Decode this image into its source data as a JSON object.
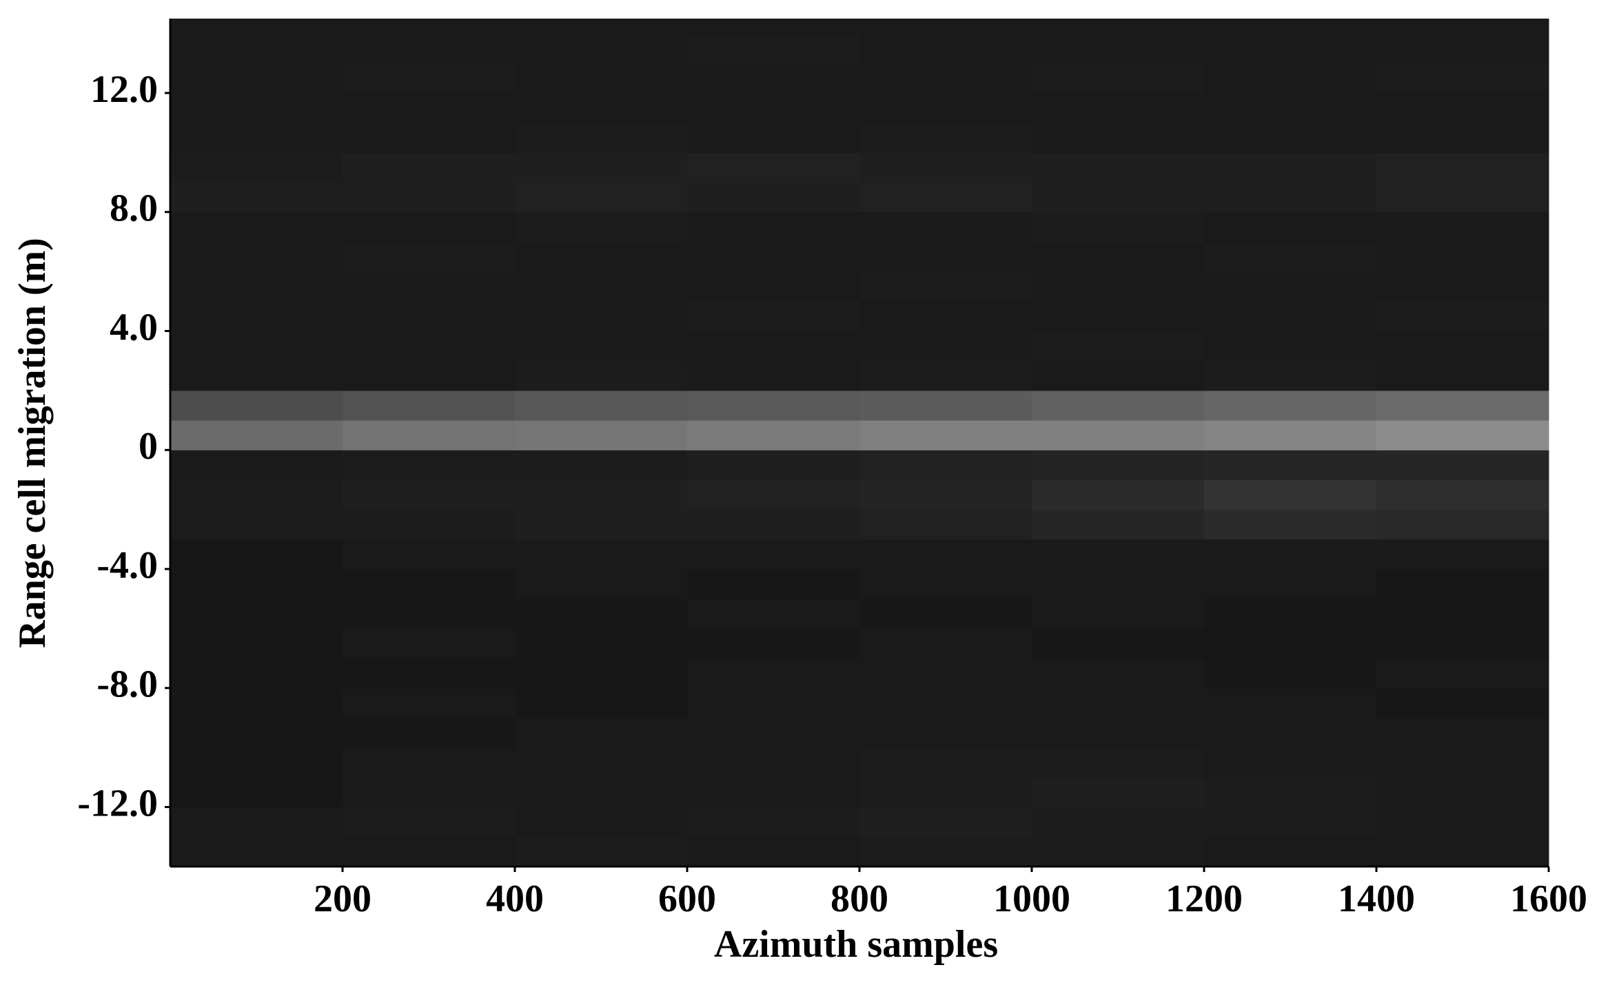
{
  "chart_data": {
    "type": "heatmap",
    "xlabel": "Azimuth samples",
    "ylabel": "Range cell migration (m)",
    "colormap": "gray",
    "xlim": [
      0,
      1600
    ],
    "ylim": [
      -14,
      14.5
    ],
    "xticks": [
      200,
      400,
      600,
      800,
      1000,
      1200,
      1400,
      1600
    ],
    "yticks": [
      {
        "value": -12,
        "label": "-12.0"
      },
      {
        "value": -8,
        "label": "-8.0"
      },
      {
        "value": -4,
        "label": "-4.0"
      },
      0,
      {
        "value": 4,
        "label": "4.0"
      },
      {
        "value": 8,
        "label": "8.0"
      },
      {
        "value": 12,
        "label": "12.0"
      }
    ],
    "xbins": [
      0,
      200,
      400,
      600,
      800,
      1000,
      1200,
      1400,
      1600
    ],
    "ybins": [
      -14,
      -13,
      -12,
      -11,
      -10,
      -9,
      -8,
      -7,
      -6,
      -5,
      -4,
      -3,
      -2,
      -1,
      0,
      1,
      2,
      3,
      4,
      5,
      6,
      7,
      8,
      9,
      10,
      11,
      12,
      13,
      14,
      14.5
    ],
    "z": [
      [
        0.1,
        0.1,
        0.11,
        0.1,
        0.11,
        0.11,
        0.1,
        0.1
      ],
      [
        0.1,
        0.11,
        0.1,
        0.11,
        0.12,
        0.11,
        0.11,
        0.1
      ],
      [
        0.09,
        0.1,
        0.1,
        0.1,
        0.11,
        0.12,
        0.11,
        0.1
      ],
      [
        0.09,
        0.1,
        0.1,
        0.1,
        0.11,
        0.11,
        0.1,
        0.1
      ],
      [
        0.09,
        0.09,
        0.1,
        0.1,
        0.1,
        0.1,
        0.1,
        0.1
      ],
      [
        0.09,
        0.1,
        0.09,
        0.1,
        0.1,
        0.1,
        0.1,
        0.09
      ],
      [
        0.09,
        0.09,
        0.09,
        0.1,
        0.1,
        0.1,
        0.09,
        0.1
      ],
      [
        0.09,
        0.1,
        0.09,
        0.09,
        0.1,
        0.09,
        0.09,
        0.09
      ],
      [
        0.09,
        0.09,
        0.09,
        0.1,
        0.09,
        0.1,
        0.09,
        0.09
      ],
      [
        0.09,
        0.09,
        0.1,
        0.09,
        0.1,
        0.1,
        0.1,
        0.09
      ],
      [
        0.09,
        0.1,
        0.1,
        0.1,
        0.1,
        0.1,
        0.1,
        0.1
      ],
      [
        0.11,
        0.11,
        0.12,
        0.12,
        0.13,
        0.15,
        0.17,
        0.16
      ],
      [
        0.11,
        0.12,
        0.12,
        0.13,
        0.14,
        0.17,
        0.2,
        0.18
      ],
      [
        0.1,
        0.11,
        0.11,
        0.12,
        0.13,
        0.14,
        0.15,
        0.15
      ],
      [
        0.42,
        0.45,
        0.46,
        0.48,
        0.5,
        0.5,
        0.52,
        0.55
      ],
      [
        0.3,
        0.32,
        0.34,
        0.35,
        0.36,
        0.38,
        0.4,
        0.42
      ],
      [
        0.1,
        0.1,
        0.11,
        0.1,
        0.11,
        0.1,
        0.11,
        0.1
      ],
      [
        0.1,
        0.1,
        0.1,
        0.1,
        0.1,
        0.11,
        0.1,
        0.1
      ],
      [
        0.1,
        0.1,
        0.1,
        0.11,
        0.1,
        0.1,
        0.1,
        0.11
      ],
      [
        0.1,
        0.1,
        0.1,
        0.1,
        0.11,
        0.1,
        0.1,
        0.1
      ],
      [
        0.1,
        0.11,
        0.1,
        0.1,
        0.1,
        0.1,
        0.11,
        0.1
      ],
      [
        0.1,
        0.1,
        0.11,
        0.1,
        0.1,
        0.11,
        0.1,
        0.1
      ],
      [
        0.12,
        0.12,
        0.13,
        0.12,
        0.13,
        0.12,
        0.12,
        0.13
      ],
      [
        0.11,
        0.12,
        0.12,
        0.13,
        0.12,
        0.12,
        0.12,
        0.13
      ],
      [
        0.1,
        0.1,
        0.11,
        0.1,
        0.11,
        0.1,
        0.1,
        0.1
      ],
      [
        0.1,
        0.1,
        0.1,
        0.1,
        0.1,
        0.1,
        0.1,
        0.1
      ],
      [
        0.1,
        0.11,
        0.1,
        0.1,
        0.1,
        0.11,
        0.1,
        0.11
      ],
      [
        0.1,
        0.1,
        0.1,
        0.11,
        0.1,
        0.1,
        0.1,
        0.1
      ],
      [
        0.1,
        0.1,
        0.1,
        0.1,
        0.1,
        0.1,
        0.1,
        0.1
      ]
    ]
  }
}
